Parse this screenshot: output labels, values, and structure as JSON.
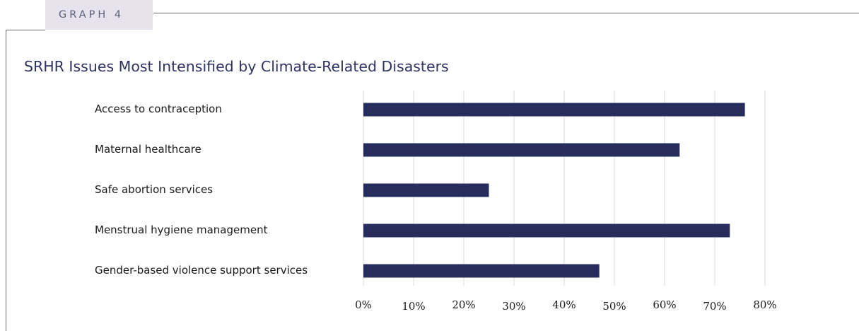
{
  "tag": "GRAPH 4",
  "chart_data": {
    "type": "bar",
    "orientation": "horizontal",
    "title": "SRHR Issues Most Intensified by Climate-Related Disasters",
    "categories": [
      "Access to contraception",
      "Maternal healthcare",
      "Safe abortion services",
      "Menstrual hygiene management",
      "Gender-based violence support services"
    ],
    "values": [
      76,
      63,
      25,
      73,
      47
    ],
    "value_unit": "%",
    "xlim": [
      0,
      80
    ],
    "x_ticks": [
      "0%",
      "10%",
      "20%",
      "30%",
      "40%",
      "50%",
      "60%",
      "70%",
      "80%"
    ],
    "grid": "vertical",
    "legend": "none",
    "bar_color": "#262d5c",
    "grid_color": "#d9d9d9"
  }
}
